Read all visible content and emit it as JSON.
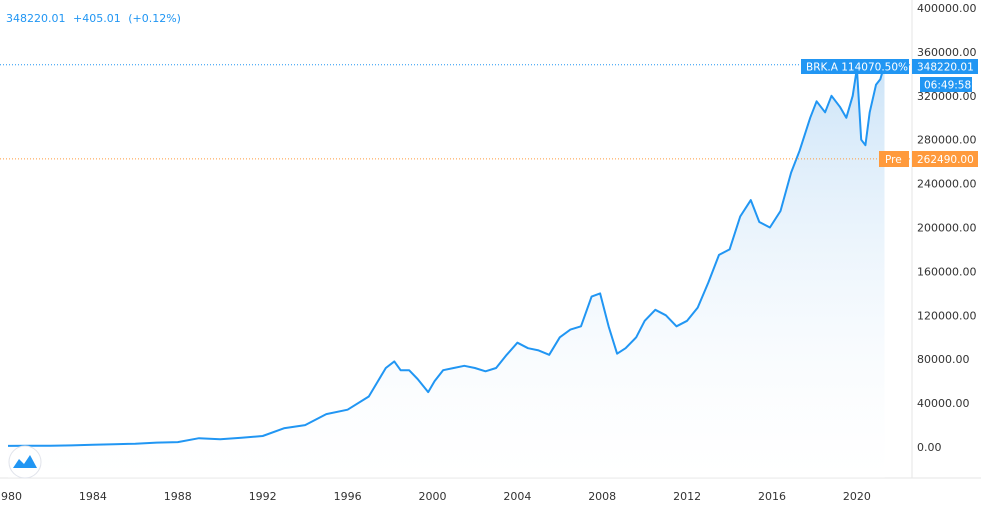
{
  "header": {
    "last": "348220.01",
    "change": "+405.01",
    "change_pct": "(+0.12%)"
  },
  "labels": {
    "symbol_tag": "BRK.A 114070.50%",
    "price_tag": "348220.01",
    "time_tag": "06:49:58",
    "prev_tag": "Pre",
    "prev_value_tag": "262490.00"
  },
  "colors": {
    "line": "#2196f3",
    "area_top": "#c7e1f7",
    "price_tag": "#2196f3",
    "prev_tag": "#ff9a3c",
    "axis_text": "#333333"
  },
  "icons": {
    "logo": "tradingview-logo-icon"
  },
  "chart_data": {
    "type": "area",
    "title": "",
    "xlabel": "",
    "ylabel": "",
    "x_ticks": [
      "1980",
      "1984",
      "1988",
      "1992",
      "1996",
      "2000",
      "2004",
      "2008",
      "2012",
      "2016",
      "2020"
    ],
    "y_ticks": [
      "0.00",
      "40000.00",
      "80000.00",
      "120000.00",
      "160000.00",
      "200000.00",
      "240000.00",
      "280000.00",
      "320000.00",
      "360000.00",
      "400000.00"
    ],
    "ylim": [
      0,
      400000
    ],
    "xlim": [
      1980,
      2021.7
    ],
    "y_axis": "right",
    "grid": false,
    "reference_lines": [
      {
        "name": "last",
        "value": 348220.01,
        "style": "dotted",
        "color": "#2196f3"
      },
      {
        "name": "previous",
        "value": 262490.0,
        "style": "dotted",
        "color": "#ff9a3c"
      }
    ],
    "series": [
      {
        "x": [
          1980,
          1981,
          1982,
          1983,
          1984,
          1985,
          1986,
          1987,
          1988,
          1989,
          1990,
          1991,
          1992,
          1993,
          1994,
          1995,
          1996,
          1997,
          1997.8,
          1998.2,
          1998.5,
          1998.9,
          1999.3,
          1999.8,
          2000.1,
          2000.5,
          2001,
          2001.5,
          2002,
          2002.5,
          2003,
          2003.5,
          2004,
          2004.5,
          2005,
          2005.5,
          2006,
          2006.5,
          2007,
          2007.5,
          2007.9,
          2008.3,
          2008.7,
          2009.1,
          2009.6,
          2010,
          2010.5,
          2011,
          2011.5,
          2012,
          2012.5,
          2013,
          2013.5,
          2014,
          2014.5,
          2015,
          2015.4,
          2015.9,
          2016.4,
          2016.9,
          2017.3,
          2017.8,
          2018.1,
          2018.5,
          2018.8,
          2019.2,
          2019.5,
          2019.8,
          2020.0,
          2020.2,
          2020.4,
          2020.6,
          2020.9,
          2021.1,
          2021.3
        ],
        "y": [
          1000,
          1100,
          1200,
          1500,
          2000,
          2500,
          3000,
          4000,
          4500,
          8000,
          7000,
          8500,
          10000,
          17000,
          20000,
          30000,
          34000,
          46000,
          72000,
          78000,
          70000,
          70000,
          62000,
          50000,
          60000,
          70000,
          72000,
          74000,
          72000,
          69000,
          72000,
          84000,
          95000,
          90000,
          88000,
          84000,
          100000,
          107000,
          110000,
          137000,
          140000,
          110000,
          85000,
          90000,
          100000,
          115000,
          125000,
          120000,
          110000,
          115000,
          127000,
          150000,
          175000,
          180000,
          210000,
          225000,
          205000,
          200000,
          215000,
          250000,
          270000,
          300000,
          315000,
          305000,
          320000,
          310000,
          300000,
          320000,
          345000,
          280000,
          275000,
          305000,
          330000,
          335000,
          348220
        ]
      }
    ]
  }
}
